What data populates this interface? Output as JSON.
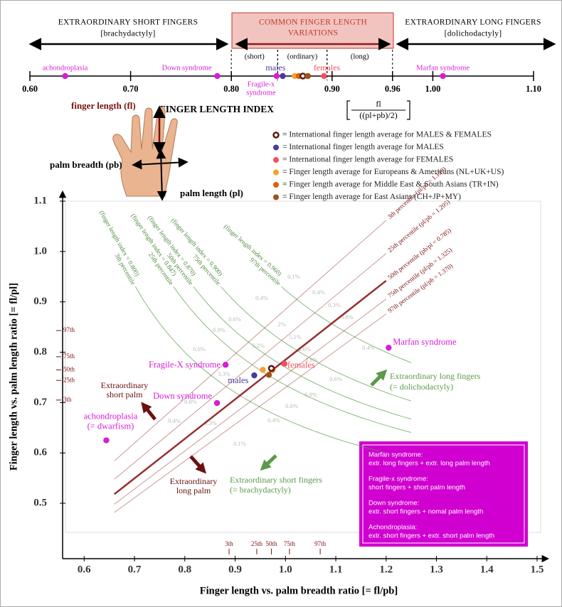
{
  "chart_data": [
    {
      "type": "number-line",
      "headers": [
        {
          "title": "EXTRAORDINARY SHORT FINGERS",
          "subtitle": "[brachydactyly]"
        },
        {
          "title": "COMMON FINGER LENGTH",
          "subtitle": "VARIATIONS"
        },
        {
          "title": "EXTRAORDINARY LONG FINGERS",
          "subtitle": "[dolichodactyly]"
        }
      ],
      "regions": [
        {
          "label": "(short)",
          "range": [
            0.8,
            0.846
          ]
        },
        {
          "label": "(ordinary)",
          "range": [
            0.846,
            0.895
          ]
        },
        {
          "label": "(long)",
          "range": [
            0.895,
            0.96
          ]
        }
      ],
      "xlim": [
        0.6,
        1.1
      ],
      "xticks": [
        {
          "value": 0.6,
          "label": "0.60"
        },
        {
          "value": 0.7,
          "label": "0.70"
        },
        {
          "value": 0.8,
          "label": "0.80"
        },
        {
          "value": 0.9,
          "label": "0.90"
        },
        {
          "value": 0.96,
          "label": "0.96"
        },
        {
          "value": 1.0,
          "label": "1.00"
        },
        {
          "value": 1.1,
          "label": "1.10"
        }
      ],
      "xlabel": "FINGER LENGTH INDEX",
      "xlabel_formula": {
        "numerator": "fl",
        "denominator": "((pl+pb)/2)"
      },
      "points": [
        {
          "name": "achondroplasia",
          "color": "#d61ed6",
          "marker": "dot",
          "x": 0.635
        },
        {
          "name": "Down syndrome",
          "color": "#d61ed6",
          "marker": "dot",
          "x": 0.786
        },
        {
          "name": "Fragile-x",
          "note": "syndrome",
          "color": "#d61ed6",
          "marker": "dot",
          "x": 0.845
        },
        {
          "name": "males",
          "color": "#4b3a9a",
          "marker": "dot",
          "x": 0.851
        },
        {
          "name": "females",
          "color": "#f05060",
          "marker": "dot",
          "x": 0.892
        },
        {
          "name": "Marfan syndrome",
          "color": "#d61ed6",
          "marker": "dot",
          "x": 1.01
        },
        {
          "name": null,
          "color": "#f5a030",
          "marker": "dot",
          "x": 0.863
        },
        {
          "name": null,
          "color": "#e06010",
          "marker": "dot",
          "x": 0.867
        },
        {
          "name": null,
          "color": "#5a1a0a",
          "marker": "ring",
          "x": 0.871
        },
        {
          "name": null,
          "color": "#a0501a",
          "marker": "dot",
          "x": 0.876
        }
      ]
    },
    {
      "type": "scatter",
      "xlabel": "Finger length vs. palm breadth ratio [= fl/pb]",
      "ylabel": "Finger length vs. palm length ratio [= fl/pl]",
      "xlim": [
        0.56,
        1.5
      ],
      "ylim": [
        0.39,
        1.1
      ],
      "xticks": [
        0.6,
        0.7,
        0.8,
        0.9,
        {
          "value": 1.0,
          "label": "1.0"
        },
        1.1,
        1.2,
        1.3,
        1.4,
        1.5
      ],
      "yticks": [
        0.5,
        0.6,
        0.7,
        0.8,
        0.9,
        {
          "value": 1.0,
          "label": "1.0"
        },
        1.1
      ],
      "points": [
        {
          "name": "Marfan syndrome",
          "color": "#d61ed6",
          "marker": "dot",
          "x": 1.205,
          "y": 0.809
        },
        {
          "name": "Fragile-X syndrome",
          "color": "#d61ed6",
          "marker": "dot",
          "x": 0.881,
          "y": 0.775
        },
        {
          "name": "Down syndrome",
          "color": "#d61ed6",
          "marker": "dot",
          "x": 0.864,
          "y": 0.699
        },
        {
          "name": "achondroplasia",
          "note": "(= dwarfism)",
          "color": "#d61ed6",
          "marker": "dot",
          "x": 0.644,
          "y": 0.625
        },
        {
          "name": "males",
          "color": "#4b3a9a",
          "marker": "dot",
          "x": 0.938,
          "y": 0.754
        },
        {
          "name": "females",
          "color": "#f05060",
          "marker": "dot",
          "x": 0.998,
          "y": 0.777
        },
        {
          "name": null,
          "color": "#f5a030",
          "marker": "dot",
          "x": 0.955,
          "y": 0.765
        },
        {
          "name": null,
          "color": "#e06010",
          "marker": "dot",
          "x": 0.974,
          "y": 0.765
        },
        {
          "name": null,
          "color": "#5a1a0a",
          "marker": "ring",
          "x": 0.972,
          "y": 0.768
        },
        {
          "name": null,
          "color": "#a0501a",
          "marker": "dot",
          "x": 0.967,
          "y": 0.755
        }
      ],
      "ratio_lines": [
        {
          "label": "3th percentile (pl/pb = 1.130)",
          "ratio": "pl/pb",
          "value": 1.13
        },
        {
          "label": "25th percentile (pl/pb = 1.205)",
          "ratio": "pl/pb",
          "value": 1.205
        },
        {
          "label": "50th percentile (pb/pl = 0.785)",
          "ratio": "pb/pl",
          "value": 0.785
        },
        {
          "label": "75th percentile (pl/pb = 1.325)",
          "ratio": "pl/pb",
          "value": 1.325
        },
        {
          "label": "97th percentile (pl/pb = 1.370)",
          "ratio": "pl/pb",
          "value": 1.37
        }
      ],
      "index_lines": [
        {
          "percentile": "97th percentile",
          "label": "(finger length index = 0.960)",
          "value": 0.96
        },
        {
          "percentile": "75th percentile",
          "label": "(finger length index = 0.900)",
          "value": 0.9
        },
        {
          "percentile": "50th percentile",
          "label": "(finger length index = 0.870)",
          "value": 0.87
        },
        {
          "percentile": "25th percentile",
          "label": "(finger length index = 0.847)",
          "value": 0.847
        },
        {
          "percentile": "3th percentile",
          "label": "(finger length index = 0.800)",
          "value": 0.8
        }
      ],
      "y_percentiles": [
        {
          "value": 0.843,
          "label": "97th"
        },
        {
          "value": 0.791,
          "label": "75th"
        },
        {
          "value": 0.765,
          "label": "50th"
        },
        {
          "value": 0.744,
          "label": "25th"
        },
        {
          "value": 0.705,
          "label": "3th"
        }
      ],
      "x_percentiles": [
        {
          "value": 0.888,
          "label": "3th"
        },
        {
          "value": 0.943,
          "label": "25th"
        },
        {
          "value": 0.972,
          "label": "50th"
        },
        {
          "value": 1.008,
          "label": "75th"
        },
        {
          "value": 1.069,
          "label": "97th"
        }
      ],
      "cell_labels": [
        "0.1%",
        "0.4%",
        "0.3%",
        "0.8%",
        "0.4%",
        "0.4%",
        "2%",
        "5.1%",
        "3.6%",
        "1.9%",
        "0.6%",
        "0.6%",
        "3.2%",
        "0.9%",
        "0.6%",
        "3.3%",
        "0.8%",
        "0.4%",
        "0.3%",
        "0.1%",
        "0.4%",
        "0.6%",
        "0.9%"
      ],
      "annotations": [
        [
          "Extraordinary",
          "short palm"
        ],
        [
          "Extraordinary",
          "long palm"
        ],
        [
          "Extraordinary long fingers",
          "(= dolichodactyly)"
        ],
        [
          "Extraordinary short fingers",
          "(= brachydactyly)"
        ]
      ],
      "info_box": [
        {
          "title": "Marfan syndrome:",
          "text": "extr. long fingers + extr. long palm length"
        },
        {
          "title": "Fragile-x syndrome:",
          "text": "short fingers + short palm length"
        },
        {
          "title": "Down syndrome:",
          "text": "extr. short fingers + nomal palm length"
        },
        {
          "title": "Achondroplasia:",
          "text": "extr. short fingers + extr. short palm length"
        }
      ]
    }
  ],
  "hand": {
    "finger_length": "finger length (fl)",
    "palm_breadth": "palm breadth (pb)",
    "palm_length": "palm length (pl)"
  },
  "legend": [
    {
      "marker": "ring",
      "color": "#5a1a0a",
      "text": "= International finger length average for MALES & FEMALES"
    },
    {
      "marker": "dot",
      "color": "#4b3a9a",
      "text": "= International finger length average for MALES"
    },
    {
      "marker": "dot",
      "color": "#f05060",
      "text": "= International finger length average for FEMALES"
    },
    {
      "marker": "dot",
      "color": "#f5a030",
      "text": "= Finger length average for Europeans & Americans (NL+UK+US)"
    },
    {
      "marker": "dot",
      "color": "#e06010",
      "text": "= Finger length average for Middle East & South Asians (TR+IN)"
    },
    {
      "marker": "dot",
      "color": "#a0501a",
      "text": "= Finger length average for East Asians (CH+JP+MY)"
    }
  ]
}
